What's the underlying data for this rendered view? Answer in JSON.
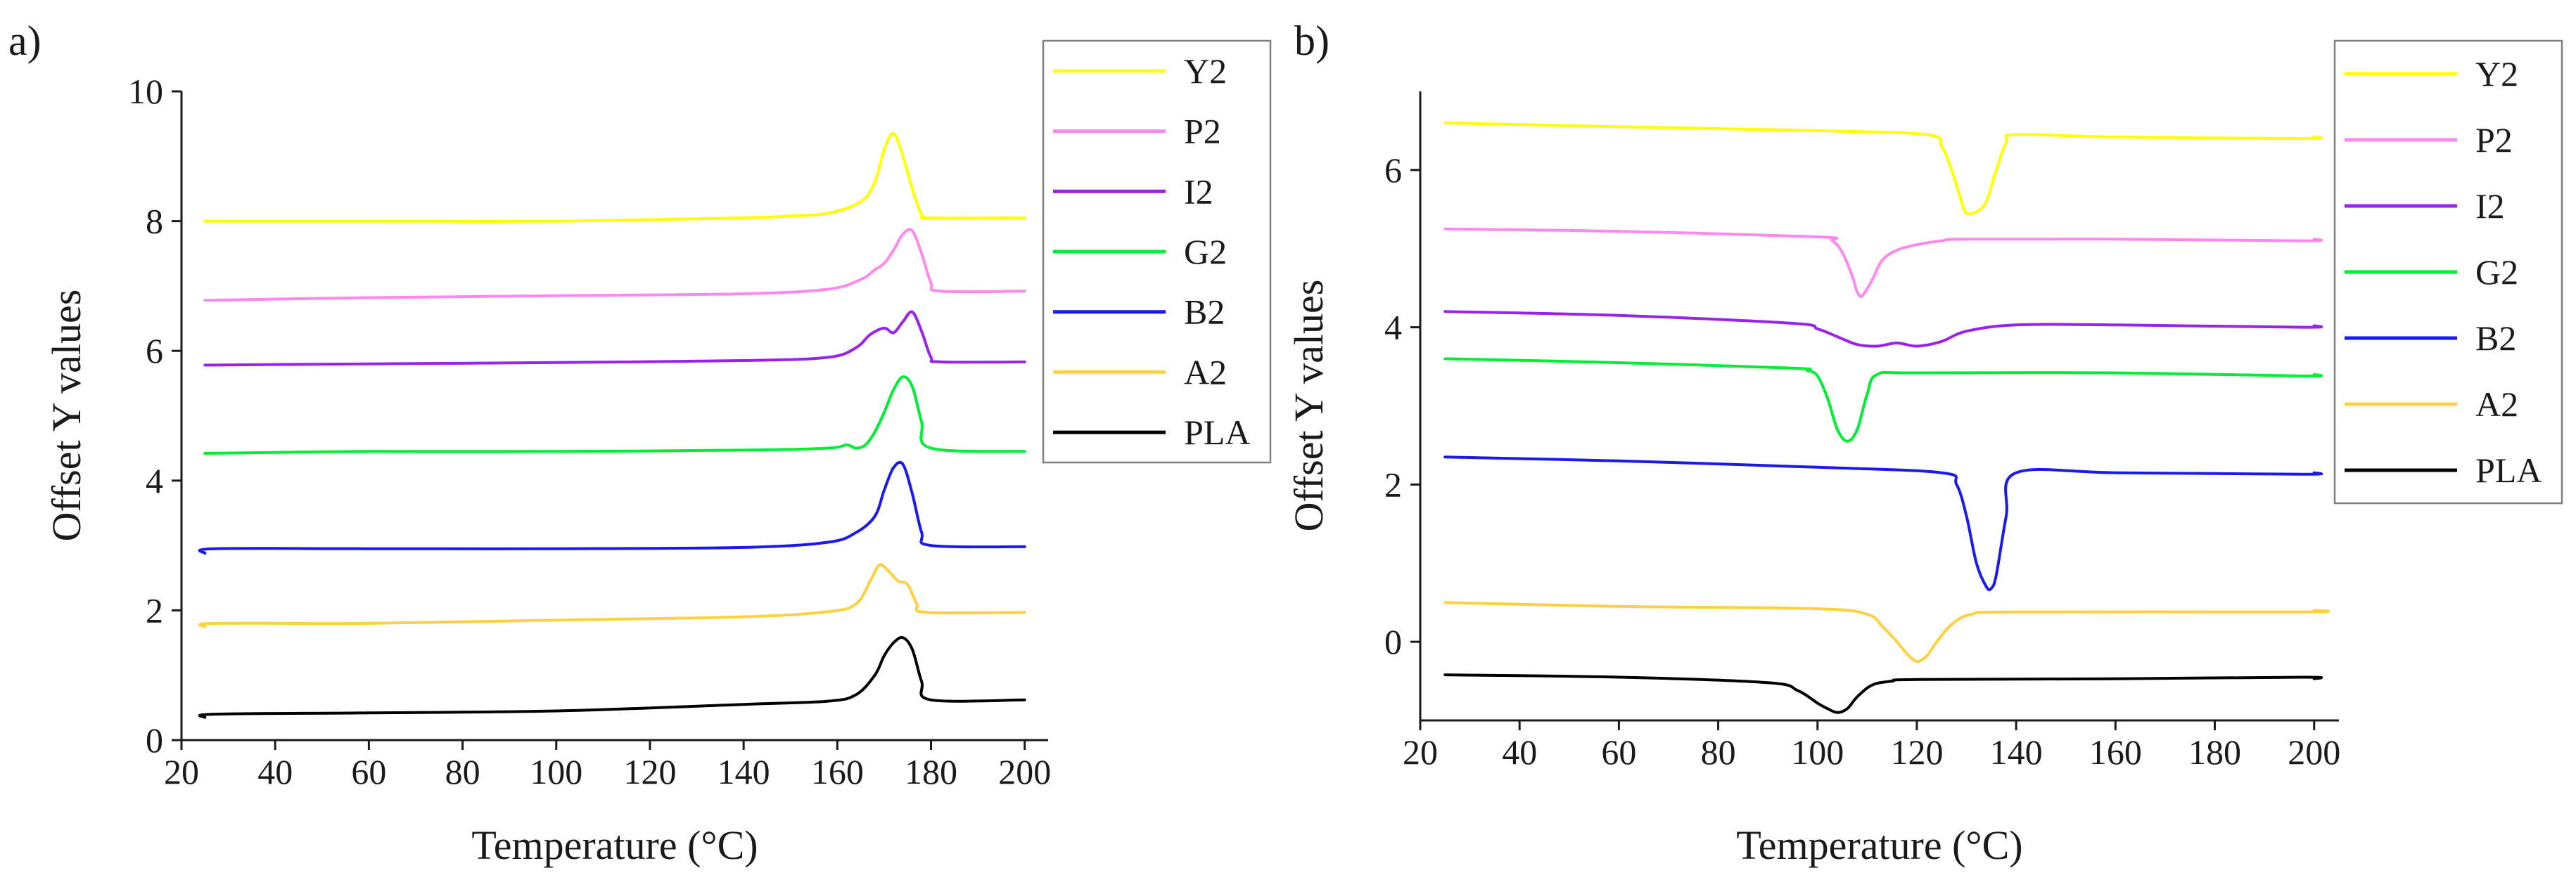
{
  "chart_data": [
    {
      "panel_label": "a)",
      "type": "line",
      "xlabel": "Temperature (°C)",
      "ylabel": "Offset Y values",
      "xlim": [
        20,
        205
      ],
      "ylim": [
        0,
        10
      ],
      "xticks": [
        "20",
        "40",
        "60",
        "80",
        "100",
        "120",
        "140",
        "160",
        "180",
        "200"
      ],
      "yticks": [
        "0",
        "2",
        "4",
        "6",
        "8",
        "10"
      ],
      "legend_position": "top-right",
      "series": [
        {
          "name": "Y2",
          "color": "#ffff00",
          "x": [
            25,
            60,
            100,
            140,
            150,
            158,
            165,
            168,
            170,
            172,
            174,
            176,
            178,
            180,
            200
          ],
          "y": [
            8.0,
            8.0,
            8.0,
            8.05,
            8.08,
            8.12,
            8.3,
            8.6,
            9.1,
            9.35,
            9.0,
            8.5,
            8.1,
            8.05,
            8.05
          ]
        },
        {
          "name": "P2",
          "color": "#ff88ee",
          "x": [
            25,
            60,
            100,
            140,
            158,
            165,
            168,
            170,
            172,
            174,
            176,
            178,
            180,
            182,
            200
          ],
          "y": [
            6.78,
            6.82,
            6.85,
            6.88,
            6.95,
            7.1,
            7.25,
            7.35,
            7.55,
            7.8,
            7.85,
            7.5,
            7.05,
            6.92,
            6.92
          ]
        },
        {
          "name": "I2",
          "color": "#9922ee",
          "x": [
            25,
            60,
            100,
            140,
            158,
            164,
            167,
            170,
            172,
            174,
            176,
            178,
            180,
            182,
            200
          ],
          "y": [
            5.78,
            5.8,
            5.82,
            5.85,
            5.9,
            6.05,
            6.25,
            6.35,
            6.28,
            6.45,
            6.6,
            6.3,
            5.9,
            5.83,
            5.83
          ]
        },
        {
          "name": "G2",
          "color": "#00ee33",
          "x": [
            25,
            60,
            100,
            140,
            158,
            162,
            164,
            166,
            168,
            170,
            172,
            174,
            176,
            178,
            180,
            200
          ],
          "y": [
            4.42,
            4.45,
            4.45,
            4.47,
            4.5,
            4.55,
            4.5,
            4.55,
            4.75,
            5.05,
            5.4,
            5.6,
            5.45,
            4.9,
            4.5,
            4.45
          ]
        },
        {
          "name": "B2",
          "color": "#1a1aee",
          "x": [
            25,
            27,
            60,
            100,
            140,
            158,
            164,
            168,
            170,
            172,
            174,
            176,
            178,
            180,
            200
          ],
          "y": [
            2.88,
            2.95,
            2.95,
            2.95,
            2.97,
            3.05,
            3.2,
            3.45,
            3.85,
            4.2,
            4.25,
            3.8,
            3.2,
            3.0,
            2.98
          ]
        },
        {
          "name": "A2",
          "color": "#ffd040",
          "x": [
            25,
            27,
            60,
            100,
            140,
            158,
            164,
            167,
            169,
            171,
            173,
            175,
            177,
            179,
            200
          ],
          "y": [
            1.75,
            1.8,
            1.8,
            1.85,
            1.9,
            1.98,
            2.1,
            2.45,
            2.7,
            2.6,
            2.45,
            2.4,
            2.1,
            1.97,
            1.97
          ]
        },
        {
          "name": "PLA",
          "color": "#000000",
          "x": [
            25,
            27,
            60,
            100,
            140,
            158,
            164,
            168,
            170,
            172,
            174,
            176,
            178,
            180,
            200
          ],
          "y": [
            0.35,
            0.4,
            0.42,
            0.45,
            0.55,
            0.6,
            0.7,
            1.0,
            1.3,
            1.5,
            1.58,
            1.4,
            0.9,
            0.62,
            0.62
          ]
        }
      ]
    },
    {
      "panel_label": "b)",
      "type": "line",
      "xlabel": "Temperature (°C)",
      "ylabel": "Offset Y values",
      "xlim": [
        20,
        205
      ],
      "ylim": [
        -1,
        7
      ],
      "xticks": [
        "20",
        "40",
        "60",
        "80",
        "100",
        "120",
        "140",
        "160",
        "180",
        "200"
      ],
      "yticks": [
        "0",
        "2",
        "4",
        "6"
      ],
      "legend_position": "top-right",
      "series": [
        {
          "name": "Y2",
          "color": "#ffff00",
          "x": [
            25,
            60,
            100,
            122,
            125,
            127,
            129,
            130,
            132,
            134,
            136,
            138,
            140,
            160,
            198,
            200
          ],
          "y": [
            6.6,
            6.55,
            6.5,
            6.45,
            6.3,
            6.0,
            5.6,
            5.45,
            5.47,
            5.6,
            6.0,
            6.35,
            6.45,
            6.42,
            6.4,
            6.42
          ]
        },
        {
          "name": "P2",
          "color": "#ff88ee",
          "x": [
            25,
            60,
            100,
            103,
            105,
            107,
            108,
            109,
            111,
            113,
            116,
            120,
            125,
            130,
            160,
            198,
            200
          ],
          "y": [
            5.25,
            5.22,
            5.15,
            5.1,
            4.95,
            4.65,
            4.45,
            4.4,
            4.6,
            4.85,
            4.98,
            5.05,
            5.1,
            5.12,
            5.12,
            5.1,
            5.12
          ]
        },
        {
          "name": "I2",
          "color": "#9922ee",
          "x": [
            25,
            60,
            95,
            100,
            104,
            108,
            112,
            116,
            120,
            125,
            130,
            140,
            160,
            198,
            200
          ],
          "y": [
            4.2,
            4.15,
            4.05,
            3.98,
            3.88,
            3.78,
            3.76,
            3.8,
            3.76,
            3.82,
            3.95,
            4.03,
            4.03,
            4.0,
            4.02
          ]
        },
        {
          "name": "G2",
          "color": "#00ee33",
          "x": [
            25,
            60,
            95,
            98,
            100,
            102,
            104,
            106,
            108,
            110,
            112,
            120,
            160,
            198,
            200
          ],
          "y": [
            3.6,
            3.55,
            3.48,
            3.45,
            3.38,
            3.1,
            2.7,
            2.55,
            2.7,
            3.15,
            3.4,
            3.42,
            3.42,
            3.38,
            3.4
          ]
        },
        {
          "name": "B2",
          "color": "#1a1aee",
          "x": [
            25,
            60,
            100,
            125,
            128,
            130,
            132,
            134,
            135,
            136,
            138,
            140,
            160,
            198,
            200
          ],
          "y": [
            2.35,
            2.3,
            2.22,
            2.15,
            2.0,
            1.6,
            1.0,
            0.7,
            0.68,
            0.85,
            1.6,
            2.15,
            2.15,
            2.13,
            2.15
          ]
        },
        {
          "name": "A2",
          "color": "#ffd040",
          "x": [
            25,
            60,
            100,
            110,
            113,
            116,
            118,
            120,
            122,
            124,
            127,
            131,
            140,
            198,
            200
          ],
          "y": [
            0.5,
            0.45,
            0.42,
            0.35,
            0.2,
            0.0,
            -0.15,
            -0.25,
            -0.18,
            0.0,
            0.22,
            0.35,
            0.38,
            0.38,
            0.4
          ]
        },
        {
          "name": "PLA",
          "color": "#000000",
          "x": [
            25,
            60,
            90,
            96,
            100,
            102,
            104,
            106,
            108,
            111,
            115,
            120,
            160,
            198,
            200
          ],
          "y": [
            -0.42,
            -0.45,
            -0.52,
            -0.62,
            -0.78,
            -0.85,
            -0.9,
            -0.85,
            -0.7,
            -0.55,
            -0.5,
            -0.48,
            -0.47,
            -0.45,
            -0.47
          ]
        }
      ]
    }
  ]
}
